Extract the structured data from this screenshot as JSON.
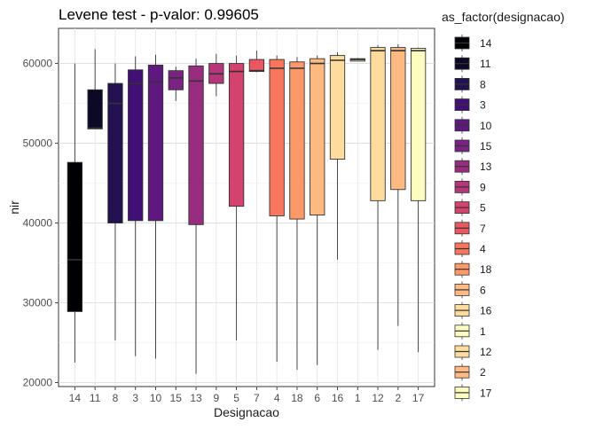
{
  "chart_data": {
    "type": "boxplot",
    "title": "Levene test - p-valor:  0.99605",
    "xlabel": "Designacao",
    "ylabel": "nir",
    "ylim": [
      19500,
      64400
    ],
    "yticks": [
      20000,
      30000,
      40000,
      50000,
      60000
    ],
    "grid": true,
    "legend_title": "as_factor(designacao)",
    "legend_position": "right",
    "categories": [
      "14",
      "11",
      "8",
      "3",
      "10",
      "15",
      "13",
      "9",
      "5",
      "7",
      "4",
      "18",
      "6",
      "16",
      "1",
      "12",
      "2",
      "17"
    ],
    "series": [
      {
        "category": "14",
        "color": "#000004",
        "min": 22500,
        "q1": 28900,
        "median": 35400,
        "q3": 47600,
        "max": 60000
      },
      {
        "category": "11",
        "color": "#0C0927",
        "min": 51800,
        "q1": 51800,
        "median": 51900,
        "q3": 56700,
        "max": 61800
      },
      {
        "category": "8",
        "color": "#231151",
        "min": 25300,
        "q1": 40000,
        "median": 55000,
        "q3": 57500,
        "max": 60000
      },
      {
        "category": "3",
        "color": "#410F75",
        "min": 23300,
        "q1": 40300,
        "median": 57500,
        "q3": 59200,
        "max": 60900
      },
      {
        "category": "10",
        "color": "#5F187F",
        "min": 23000,
        "q1": 40300,
        "median": 57700,
        "q3": 59800,
        "max": 61100
      },
      {
        "category": "15",
        "color": "#7B2382",
        "min": 55300,
        "q1": 56700,
        "median": 58200,
        "q3": 59100,
        "max": 59600
      },
      {
        "category": "13",
        "color": "#982D80",
        "min": 21100,
        "q1": 39800,
        "median": 57800,
        "q3": 59700,
        "max": 60600
      },
      {
        "category": "9",
        "color": "#B63679",
        "min": 55900,
        "q1": 57500,
        "median": 58700,
        "q3": 60000,
        "max": 61200
      },
      {
        "category": "5",
        "color": "#D3436E",
        "min": 25300,
        "q1": 42100,
        "median": 59000,
        "q3": 60000,
        "max": 61000
      },
      {
        "category": "7",
        "color": "#EB5760",
        "min": 58900,
        "q1": 59000,
        "median": 59100,
        "q3": 60500,
        "max": 61600
      },
      {
        "category": "4",
        "color": "#F8765C",
        "min": 22600,
        "q1": 40900,
        "median": 59400,
        "q3": 60500,
        "max": 61000
      },
      {
        "category": "18",
        "color": "#FD9969",
        "min": 21600,
        "q1": 40500,
        "median": 59400,
        "q3": 60200,
        "max": 60800
      },
      {
        "category": "6",
        "color": "#FEBA80",
        "min": 22200,
        "q1": 41000,
        "median": 60000,
        "q3": 60600,
        "max": 61000
      },
      {
        "category": "16",
        "color": "#FDDC9E",
        "min": 35400,
        "q1": 48000,
        "median": 60400,
        "q3": 61000,
        "max": 61400
      },
      {
        "category": "1",
        "color": "#FCFDBF",
        "min": 60300,
        "q1": 60300,
        "median": 60500,
        "q3": 60600,
        "max": 60700
      },
      {
        "category": "12",
        "color": "#FDDC9E",
        "min": 24100,
        "q1": 42800,
        "median": 61600,
        "q3": 62000,
        "max": 62300
      },
      {
        "category": "2",
        "color": "#FEBA80",
        "min": 27100,
        "q1": 44200,
        "median": 61600,
        "q3": 62000,
        "max": 62400
      },
      {
        "category": "17",
        "color": "#FCFDBF",
        "min": 23800,
        "q1": 42800,
        "median": 61600,
        "q3": 61900,
        "max": 62000
      }
    ],
    "legend": [
      {
        "label": "14",
        "color": "#000004"
      },
      {
        "label": "11",
        "color": "#0C0927"
      },
      {
        "label": "8",
        "color": "#231151"
      },
      {
        "label": "3",
        "color": "#410F75"
      },
      {
        "label": "10",
        "color": "#5F187F"
      },
      {
        "label": "15",
        "color": "#7B2382"
      },
      {
        "label": "13",
        "color": "#982D80"
      },
      {
        "label": "9",
        "color": "#B63679"
      },
      {
        "label": "5",
        "color": "#D3436E"
      },
      {
        "label": "7",
        "color": "#EB5760"
      },
      {
        "label": "4",
        "color": "#F8765C"
      },
      {
        "label": "18",
        "color": "#FD9969"
      },
      {
        "label": "6",
        "color": "#FEBA80"
      },
      {
        "label": "16",
        "color": "#FDDC9E"
      },
      {
        "label": "1",
        "color": "#FCFDBF"
      },
      {
        "label": "12",
        "color": "#FDDC9E"
      },
      {
        "label": "2",
        "color": "#FEBA80"
      },
      {
        "label": "17",
        "color": "#FCFDBF"
      }
    ]
  }
}
